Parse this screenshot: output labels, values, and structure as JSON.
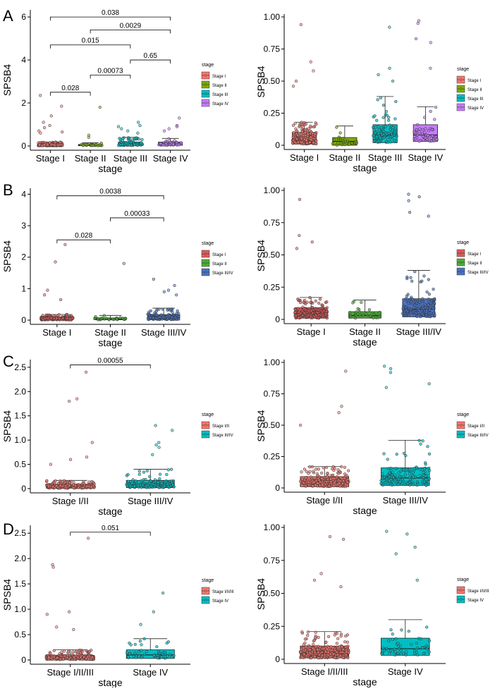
{
  "figure": {
    "title": "",
    "panels": [
      {
        "letter": "A",
        "legend_title": "stage",
        "legend_items": [
          "Stage I",
          "Stage II",
          "Stage III",
          "Stage IV"
        ]
      },
      {
        "letter": "B",
        "legend_title": "stage",
        "legend_items": [
          "Stage I",
          "Stage II",
          "Stage III/IV"
        ]
      },
      {
        "letter": "C",
        "legend_title": "stage",
        "legend_items": [
          "Stage I/II",
          "Stage III/IV"
        ]
      },
      {
        "letter": "D",
        "legend_title": "stage",
        "legend_items": [
          "Stage I/II/III",
          "Stage IV"
        ]
      }
    ]
  },
  "chart_data": [
    {
      "id": "A-left",
      "type": "box",
      "title": "",
      "xlabel": "stage",
      "ylabel": "SPSB4",
      "ylim": [
        0,
        6.2
      ],
      "yticks": [
        0,
        2,
        4,
        6
      ],
      "categories": [
        "Stage I",
        "Stage II",
        "Stage III",
        "Stage IV"
      ],
      "colors": [
        "#F8766D",
        "#7CAE00",
        "#00BFC4",
        "#C77CFF"
      ],
      "box": [
        {
          "q1": 0.01,
          "median": 0.05,
          "q3": 0.09,
          "whisker_hi": 0.18
        },
        {
          "q1": 0.01,
          "median": 0.03,
          "q3": 0.07,
          "whisker_hi": 0.15
        },
        {
          "q1": 0.02,
          "median": 0.08,
          "q3": 0.18,
          "whisker_hi": 0.4
        },
        {
          "q1": 0.03,
          "median": 0.1,
          "q3": 0.18,
          "whisker_hi": 0.35
        }
      ],
      "outliers": [
        [
          1.85,
          2.35,
          1.4,
          1.1,
          0.95,
          0.85,
          0.7,
          0.65,
          0.6
        ],
        [
          1.8,
          0.5,
          0.4
        ],
        [
          1.1,
          0.95,
          0.9,
          0.8,
          0.7,
          0.6
        ],
        [
          1.3,
          0.95,
          0.9,
          0.8,
          0.7
        ]
      ],
      "npoints": [
        220,
        30,
        110,
        55
      ],
      "comparisons": [
        {
          "from": 0,
          "to": 3,
          "y": 6.0,
          "label": "0.038"
        },
        {
          "from": 1,
          "to": 3,
          "y": 5.4,
          "label": "0.0029"
        },
        {
          "from": 0,
          "to": 2,
          "y": 4.7,
          "label": "0.015"
        },
        {
          "from": 2,
          "to": 3,
          "y": 4.0,
          "label": "0.65"
        },
        {
          "from": 1,
          "to": 2,
          "y": 3.3,
          "label": "0.00073"
        },
        {
          "from": 0,
          "to": 1,
          "y": 2.5,
          "label": "0.028"
        }
      ]
    },
    {
      "id": "A-right",
      "type": "box",
      "title": "",
      "xlabel": "stage",
      "ylabel": "SPSB4",
      "ylim": [
        0,
        1.0
      ],
      "yticks": [
        0,
        0.25,
        0.5,
        0.75,
        1.0
      ],
      "ytick_labels": [
        "0",
        "0.25",
        "0.50",
        "0.75",
        "1.00"
      ],
      "categories": [
        "Stage I",
        "Stage II",
        "Stage III",
        "Stage IV"
      ],
      "colors": [
        "#F8766D",
        "#7CAE00",
        "#00BFC4",
        "#C77CFF"
      ],
      "box": [
        {
          "q1": 0.01,
          "median": 0.05,
          "q3": 0.1,
          "whisker_hi": 0.18
        },
        {
          "q1": 0.0,
          "median": 0.03,
          "q3": 0.06,
          "whisker_hi": 0.15
        },
        {
          "q1": 0.02,
          "median": 0.08,
          "q3": 0.16,
          "whisker_hi": 0.38
        },
        {
          "q1": 0.03,
          "median": 0.08,
          "q3": 0.16,
          "whisker_hi": 0.3
        }
      ],
      "outliers": [
        [
          0.94,
          0.65,
          0.58,
          0.5,
          0.46
        ],
        [],
        [
          0.92,
          0.6,
          0.55,
          0.5
        ],
        [
          0.97,
          0.95,
          0.83,
          0.8,
          0.6
        ]
      ],
      "npoints": [
        220,
        30,
        110,
        55
      ],
      "comparisons": []
    },
    {
      "id": "B-left",
      "type": "box",
      "title": "",
      "xlabel": "stage",
      "ylabel": "SPSB4",
      "ylim": [
        0,
        4.1
      ],
      "yticks": [
        0,
        1,
        2,
        3,
        4
      ],
      "categories": [
        "Stage I",
        "Stage II",
        "Stage III/IV"
      ],
      "colors": [
        "#E05B5B",
        "#4CAF35",
        "#4A74C4"
      ],
      "box": [
        {
          "q1": 0.01,
          "median": 0.05,
          "q3": 0.09,
          "whisker_hi": 0.18
        },
        {
          "q1": 0.01,
          "median": 0.03,
          "q3": 0.07,
          "whisker_hi": 0.15
        },
        {
          "q1": 0.02,
          "median": 0.08,
          "q3": 0.17,
          "whisker_hi": 0.38
        }
      ],
      "outliers": [
        [
          2.4,
          1.85,
          0.95,
          0.8,
          0.65
        ],
        [
          1.8
        ],
        [
          1.3,
          1.1,
          0.95,
          0.9,
          0.8
        ]
      ],
      "npoints": [
        220,
        30,
        160
      ],
      "comparisons": [
        {
          "from": 0,
          "to": 2,
          "y": 3.95,
          "label": "0.0038"
        },
        {
          "from": 1,
          "to": 2,
          "y": 3.25,
          "label": "0.00033"
        },
        {
          "from": 0,
          "to": 1,
          "y": 2.55,
          "label": "0.028"
        }
      ]
    },
    {
      "id": "B-right",
      "type": "box",
      "title": "",
      "xlabel": "stage",
      "ylabel": "SPSB4",
      "ylim": [
        0,
        1.0
      ],
      "yticks": [
        0,
        0.25,
        0.5,
        0.75,
        1.0
      ],
      "ytick_labels": [
        "0",
        "0.25",
        "0.50",
        "0.75",
        "1.00"
      ],
      "categories": [
        "Stage I",
        "Stage II",
        "Stage III/IV"
      ],
      "colors": [
        "#E05B5B",
        "#4CAF35",
        "#4A74C4"
      ],
      "box": [
        {
          "q1": 0.01,
          "median": 0.05,
          "q3": 0.09,
          "whisker_hi": 0.17
        },
        {
          "q1": 0.01,
          "median": 0.03,
          "q3": 0.06,
          "whisker_hi": 0.15
        },
        {
          "q1": 0.02,
          "median": 0.08,
          "q3": 0.16,
          "whisker_hi": 0.38
        }
      ],
      "outliers": [
        [
          0.93,
          0.65,
          0.6,
          0.55
        ],
        [],
        [
          0.97,
          0.95,
          0.92,
          0.83,
          0.8
        ]
      ],
      "npoints": [
        220,
        30,
        160
      ],
      "comparisons": []
    },
    {
      "id": "C-left",
      "type": "box",
      "title": "",
      "xlabel": "stage",
      "ylabel": "SPSB4",
      "ylim": [
        0,
        2.6
      ],
      "yticks": [
        0,
        0.5,
        1.0,
        1.5,
        2.0,
        2.5
      ],
      "ytick_labels": [
        "0",
        "0.5",
        "1.0",
        "1.5",
        "2.0",
        "2.5"
      ],
      "categories": [
        "Stage I/II",
        "Stage III/IV"
      ],
      "colors": [
        "#F8766D",
        "#00BFC4"
      ],
      "box": [
        {
          "q1": 0.01,
          "median": 0.05,
          "q3": 0.09,
          "whisker_hi": 0.17
        },
        {
          "q1": 0.02,
          "median": 0.08,
          "q3": 0.17,
          "whisker_hi": 0.4
        }
      ],
      "outliers": [
        [
          2.4,
          1.85,
          1.8,
          0.95,
          0.65,
          0.6,
          0.5
        ],
        [
          1.3,
          1.2,
          0.95,
          0.9,
          0.85,
          0.7
        ]
      ],
      "npoints": [
        250,
        160
      ],
      "comparisons": [
        {
          "from": 0,
          "to": 1,
          "y": 2.55,
          "label": "0.00055"
        }
      ]
    },
    {
      "id": "C-right",
      "type": "box",
      "title": "",
      "xlabel": "stage",
      "ylabel": "SPSB4",
      "ylim": [
        0,
        1.0
      ],
      "yticks": [
        0,
        0.25,
        0.5,
        0.75,
        1.0
      ],
      "ytick_labels": [
        "0",
        "0.25",
        "0.50",
        "0.75",
        "1.00"
      ],
      "categories": [
        "Stage I/II",
        "Stage III/IV"
      ],
      "colors": [
        "#F8766D",
        "#00BFC4"
      ],
      "box": [
        {
          "q1": 0.01,
          "median": 0.05,
          "q3": 0.09,
          "whisker_hi": 0.17
        },
        {
          "q1": 0.02,
          "median": 0.08,
          "q3": 0.16,
          "whisker_hi": 0.38
        }
      ],
      "outliers": [
        [
          0.93,
          0.65,
          0.6,
          0.5
        ],
        [
          0.97,
          0.95,
          0.92,
          0.83,
          0.8
        ]
      ],
      "npoints": [
        250,
        160
      ],
      "comparisons": []
    },
    {
      "id": "D-left",
      "type": "box",
      "title": "",
      "xlabel": "stage",
      "ylabel": "SPSB4",
      "ylim": [
        0,
        2.6
      ],
      "yticks": [
        0,
        0.5,
        1.0,
        1.5,
        2.0,
        2.5
      ],
      "ytick_labels": [
        "0",
        "0.5",
        "1.0",
        "1.5",
        "2.0",
        "2.5"
      ],
      "categories": [
        "Stage I/II/III",
        "Stage IV"
      ],
      "colors": [
        "#F8766D",
        "#00BFC4"
      ],
      "box": [
        {
          "q1": 0.01,
          "median": 0.05,
          "q3": 0.09,
          "whisker_hi": 0.2
        },
        {
          "q1": 0.03,
          "median": 0.1,
          "q3": 0.2,
          "whisker_hi": 0.42
        }
      ],
      "outliers": [
        [
          2.4,
          1.88,
          1.83,
          0.95,
          0.9,
          0.65,
          0.6
        ],
        [
          1.32,
          0.95,
          0.7
        ]
      ],
      "npoints": [
        330,
        55
      ],
      "comparisons": [
        {
          "from": 0,
          "to": 1,
          "y": 2.52,
          "label": "0.051"
        }
      ]
    },
    {
      "id": "D-right",
      "type": "box",
      "title": "",
      "xlabel": "stage",
      "ylabel": "SPSB4",
      "ylim": [
        0,
        1.0
      ],
      "yticks": [
        0,
        0.25,
        0.5,
        0.75,
        1.0
      ],
      "ytick_labels": [
        "0",
        "0.25",
        "0.50",
        "0.75",
        "1.00"
      ],
      "categories": [
        "Stage I/II/III",
        "Stage IV"
      ],
      "colors": [
        "#F8766D",
        "#00BFC4"
      ],
      "box": [
        {
          "q1": 0.01,
          "median": 0.05,
          "q3": 0.1,
          "whisker_hi": 0.21
        },
        {
          "q1": 0.03,
          "median": 0.08,
          "q3": 0.16,
          "whisker_hi": 0.3
        }
      ],
      "outliers": [
        [
          0.93,
          0.91,
          0.65,
          0.6,
          0.55
        ],
        [
          0.97,
          0.95,
          0.85,
          0.8,
          0.6
        ]
      ],
      "npoints": [
        330,
        55
      ],
      "comparisons": []
    }
  ]
}
